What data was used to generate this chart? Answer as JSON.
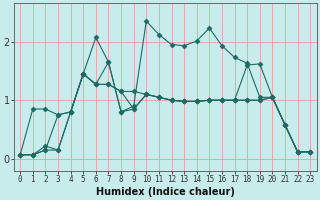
{
  "xlabel": "Humidex (Indice chaleur)",
  "xlim": [
    -0.5,
    23.5
  ],
  "ylim": [
    -0.2,
    2.65
  ],
  "yticks": [
    0,
    1,
    2
  ],
  "xticks": [
    0,
    1,
    2,
    3,
    4,
    5,
    6,
    7,
    8,
    9,
    10,
    11,
    12,
    13,
    14,
    15,
    16,
    17,
    18,
    19,
    20,
    21,
    22,
    23
  ],
  "bg_color": "#c8ecec",
  "grid_color": "#e8a0a0",
  "line_color": "#1d6b63",
  "series": [
    [
      0.07,
      0.07,
      0.15,
      0.15,
      0.8,
      1.45,
      2.07,
      1.65,
      0.8,
      0.9,
      2.35,
      2.12,
      1.95,
      1.93,
      2.01,
      2.23,
      1.93,
      1.73,
      1.63,
      1.05,
      1.05,
      0.58,
      0.12,
      0.12
    ],
    [
      0.07,
      0.85,
      0.85,
      0.75,
      0.8,
      1.45,
      1.27,
      1.27,
      1.15,
      1.15,
      1.1,
      1.05,
      1.0,
      0.98,
      0.98,
      1.0,
      1.0,
      1.0,
      1.0,
      1.0,
      1.05,
      0.58,
      0.12,
      0.12
    ],
    [
      0.07,
      0.07,
      0.15,
      0.75,
      0.8,
      1.45,
      1.27,
      1.27,
      1.15,
      0.85,
      1.1,
      1.05,
      1.0,
      0.98,
      0.98,
      1.0,
      1.0,
      1.0,
      1.6,
      1.62,
      1.05,
      0.58,
      0.12,
      0.12
    ],
    [
      0.07,
      0.07,
      0.22,
      0.15,
      0.8,
      1.45,
      1.27,
      1.65,
      0.8,
      0.85,
      1.1,
      1.05,
      1.0,
      0.98,
      0.98,
      1.0,
      1.0,
      1.0,
      1.0,
      1.0,
      1.05,
      0.58,
      0.12,
      0.12
    ]
  ],
  "figsize": [
    3.2,
    2.0
  ],
  "dpi": 100
}
